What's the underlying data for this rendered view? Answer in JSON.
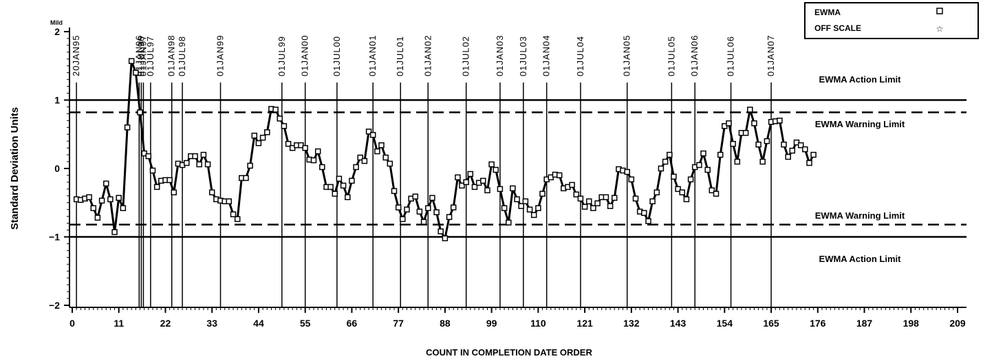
{
  "chart_data": {
    "type": "line",
    "title": "",
    "xlabel": "COUNT IN COMPLETION DATE ORDER",
    "ylabel": "Standard Deviation Units",
    "y_unit_label": "Mild",
    "xlim": [
      0,
      209
    ],
    "ylim": [
      -2,
      2
    ],
    "x_ticks": [
      0,
      11,
      22,
      33,
      44,
      55,
      66,
      77,
      88,
      99,
      110,
      121,
      132,
      143,
      154,
      165,
      176,
      187,
      198,
      209
    ],
    "y_ticks": [
      -2,
      -1,
      0,
      1,
      2
    ],
    "legend": {
      "position": "top-right",
      "entries": [
        {
          "label": "EWMA",
          "marker": "square"
        },
        {
          "label": "OFF SCALE",
          "marker": "star"
        }
      ]
    },
    "limits": [
      {
        "label": "EWMA Action Limit",
        "value": 1.0,
        "style": "solid"
      },
      {
        "label": "EWMA Warning Limit",
        "value": 0.82,
        "style": "dashed"
      },
      {
        "label": "EWMA Warning Limit",
        "value": -0.82,
        "style": "dashed"
      },
      {
        "label": "EWMA Action Limit",
        "value": -1.0,
        "style": "solid"
      }
    ],
    "date_markers": [
      {
        "x": 1,
        "label": "20JAN95"
      },
      {
        "x": 15.8,
        "label": "01JAN96"
      },
      {
        "x": 16.3,
        "label": "01JUL96"
      },
      {
        "x": 16.8,
        "label": "01JAN97"
      },
      {
        "x": 18.5,
        "label": "01JUL97"
      },
      {
        "x": 23.5,
        "label": "01JAN98"
      },
      {
        "x": 26,
        "label": "01JUL98"
      },
      {
        "x": 35,
        "label": "01JAN99"
      },
      {
        "x": 49.5,
        "label": "01JUL99"
      },
      {
        "x": 55,
        "label": "01JAN00"
      },
      {
        "x": 62.5,
        "label": "01JUL00"
      },
      {
        "x": 71,
        "label": "01JAN01"
      },
      {
        "x": 77.5,
        "label": "01JUL01"
      },
      {
        "x": 84,
        "label": "01JAN02"
      },
      {
        "x": 93,
        "label": "01JUL02"
      },
      {
        "x": 101,
        "label": "01JAN03"
      },
      {
        "x": 106.5,
        "label": "01JUL03"
      },
      {
        "x": 112,
        "label": "01JAN04"
      },
      {
        "x": 120,
        "label": "01JUL04"
      },
      {
        "x": 131,
        "label": "01JAN05"
      },
      {
        "x": 141.5,
        "label": "01JUL05"
      },
      {
        "x": 147,
        "label": "01JAN06"
      },
      {
        "x": 155.5,
        "label": "01JUL06"
      },
      {
        "x": 165,
        "label": "01JAN07"
      }
    ],
    "series": [
      {
        "name": "EWMA",
        "marker": "square",
        "y": [
          -0.45,
          -0.46,
          -0.44,
          -0.42,
          -0.58,
          -0.72,
          -0.47,
          -0.22,
          -0.45,
          -0.93,
          -0.43,
          -0.58,
          0.6,
          1.57,
          1.4,
          0.82,
          0.22,
          0.18,
          -0.03,
          -0.27,
          -0.18,
          -0.17,
          -0.17,
          -0.35,
          0.07,
          0.05,
          0.08,
          0.18,
          0.18,
          0.06,
          0.2,
          0.06,
          -0.35,
          -0.45,
          -0.47,
          -0.48,
          -0.48,
          -0.67,
          -0.74,
          -0.14,
          -0.14,
          0.04,
          0.48,
          0.37,
          0.45,
          0.53,
          0.87,
          0.86,
          0.73,
          0.62,
          0.36,
          0.3,
          0.34,
          0.34,
          0.3,
          0.13,
          0.12,
          0.25,
          0.02,
          -0.27,
          -0.27,
          -0.37,
          -0.15,
          -0.25,
          -0.42,
          -0.18,
          0.02,
          0.16,
          0.11,
          0.54,
          0.49,
          0.25,
          0.34,
          0.16,
          0.07,
          -0.33,
          -0.57,
          -0.74,
          -0.6,
          -0.44,
          -0.41,
          -0.63,
          -0.78,
          -0.58,
          -0.43,
          -0.64,
          -0.92,
          -1.02,
          -0.71,
          -0.57,
          -0.13,
          -0.25,
          -0.2,
          -0.08,
          -0.27,
          -0.21,
          -0.18,
          -0.32,
          0.06,
          -0.02,
          -0.3,
          -0.58,
          -0.79,
          -0.29,
          -0.45,
          -0.55,
          -0.48,
          -0.6,
          -0.68,
          -0.58,
          -0.37,
          -0.16,
          -0.13,
          -0.09,
          -0.1,
          -0.29,
          -0.27,
          -0.24,
          -0.38,
          -0.44,
          -0.56,
          -0.48,
          -0.58,
          -0.51,
          -0.42,
          -0.42,
          -0.55,
          -0.43,
          -0.01,
          -0.03,
          -0.05,
          -0.16,
          -0.44,
          -0.63,
          -0.65,
          -0.77,
          -0.48,
          -0.35,
          0.0,
          0.1,
          0.2,
          -0.12,
          -0.3,
          -0.35,
          -0.45,
          -0.16,
          0.02,
          0.05,
          0.22,
          -0.02,
          -0.32,
          -0.37,
          0.2,
          0.62,
          0.66,
          0.36,
          0.1,
          0.52,
          0.52,
          0.86,
          0.66,
          0.35,
          0.1,
          0.4,
          0.68,
          0.69,
          0.7,
          0.35,
          0.17,
          0.26,
          0.38,
          0.34,
          0.28,
          0.08,
          0.2
        ]
      }
    ]
  }
}
